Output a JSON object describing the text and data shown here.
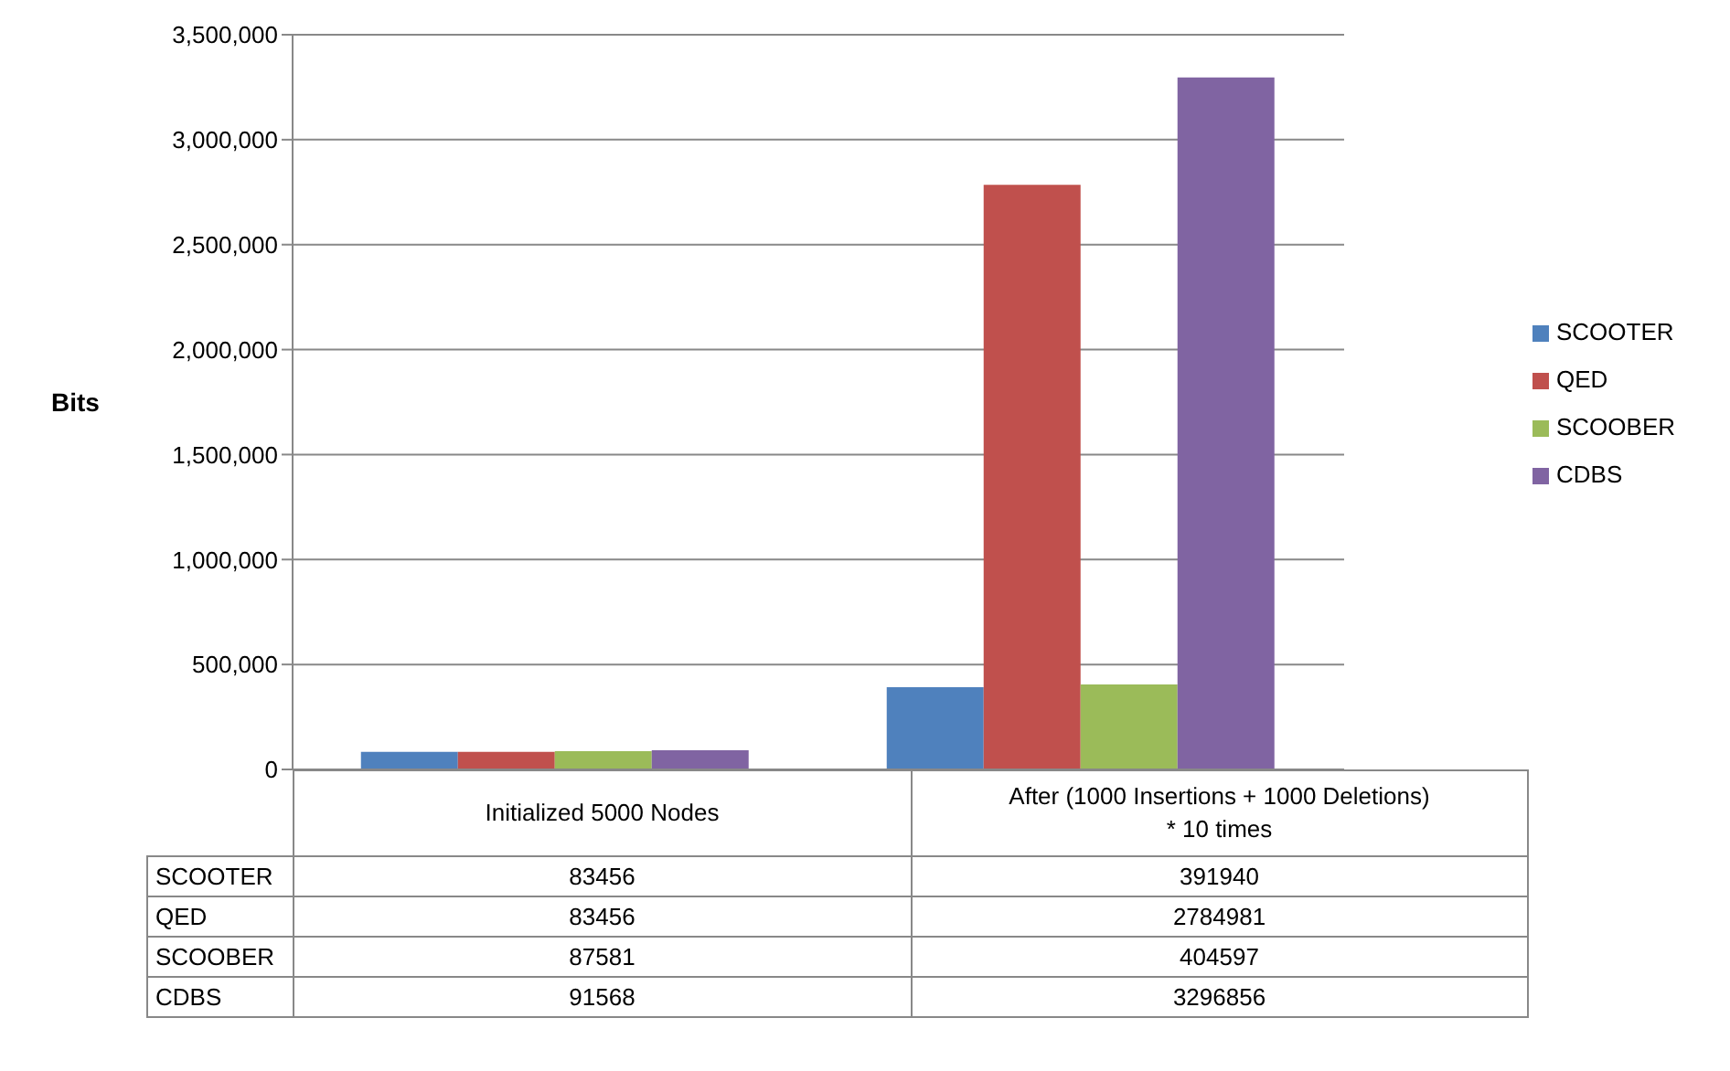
{
  "chart_data": {
    "type": "bar",
    "ylabel": "Bits",
    "categories": [
      "Initialized 5000 Nodes",
      "After (1000 Insertions + 1000 Deletions)\n* 10 times"
    ],
    "series": [
      {
        "name": "SCOOTER",
        "color": "#4f81bd",
        "values": [
          83456,
          391940
        ]
      },
      {
        "name": "QED",
        "color": "#c0504d",
        "values": [
          83456,
          2784981
        ]
      },
      {
        "name": "SCOOBER",
        "color": "#9bbb59",
        "values": [
          87581,
          404597
        ]
      },
      {
        "name": "CDBS",
        "color": "#8064a2",
        "values": [
          91568,
          3296856
        ]
      }
    ],
    "ylim": [
      0,
      3500000
    ],
    "yticks": [
      0,
      {
        "value": 500000,
        "label": "500,000"
      },
      {
        "value": 1000000,
        "label": "1,000,000"
      },
      {
        "value": 1500000,
        "label": "1,500,000"
      },
      {
        "value": 2000000,
        "label": "2,000,000"
      },
      {
        "value": 2500000,
        "label": "2,500,000"
      },
      {
        "value": 3000000,
        "label": "3,000,000"
      },
      {
        "value": 3500000,
        "label": "3,500,000"
      }
    ],
    "grid": "y",
    "legend": "right",
    "data_labels": true
  }
}
